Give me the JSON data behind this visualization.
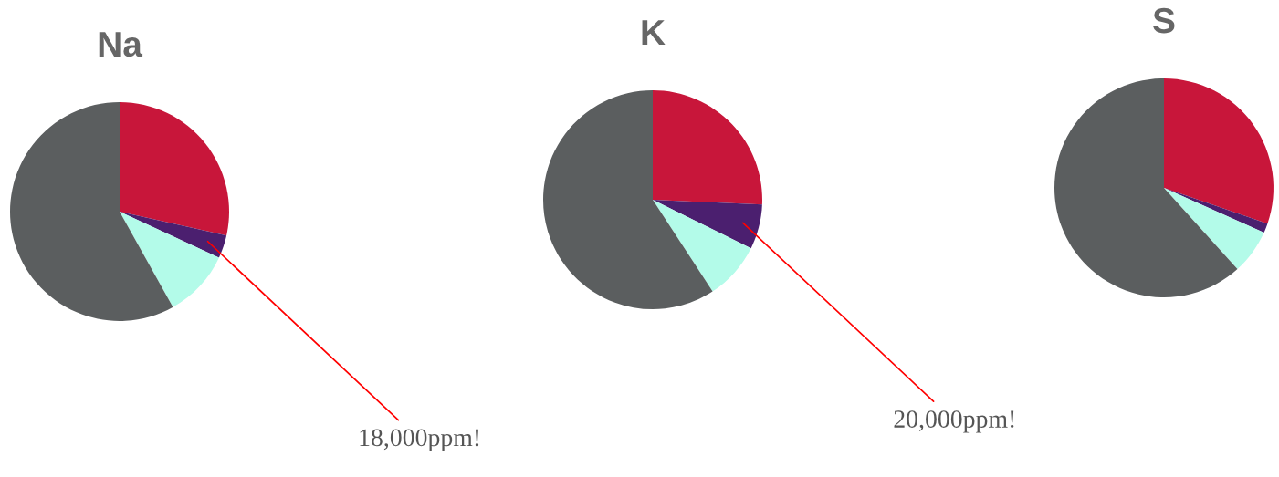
{
  "chart_data": [
    {
      "type": "pie",
      "title": "Na",
      "categories": [
        null,
        null,
        null,
        null
      ],
      "values": [
        28.5,
        3.4,
        10,
        58.1
      ],
      "colors": [
        "#c8163a",
        "#4b1f6f",
        "#b3fbe9",
        "#5b5e5f"
      ],
      "annotations": [
        "18,000ppm!"
      ]
    },
    {
      "type": "pie",
      "title": "K",
      "categories": [
        null,
        null,
        null,
        null
      ],
      "values": [
        25.7,
        6.6,
        8.5,
        59.2
      ],
      "colors": [
        "#c8163a",
        "#4b1f6f",
        "#b3fbe9",
        "#5b5e5f"
      ],
      "annotations": [
        "20,000ppm!"
      ]
    },
    {
      "type": "pie",
      "title": "S",
      "categories": [
        null,
        null,
        null,
        null
      ],
      "values": [
        30.3,
        1.4,
        6.6,
        61.7
      ],
      "colors": [
        "#c8163a",
        "#4b1f6f",
        "#b3fbe9",
        "#5b5e5f"
      ]
    }
  ]
}
